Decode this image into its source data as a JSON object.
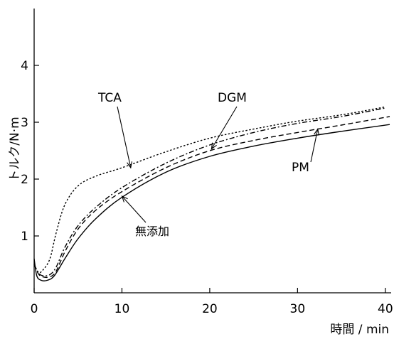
{
  "chart_data": {
    "type": "line",
    "ylabel": "トルク/N·m",
    "xlabel": "時間 / min",
    "xlim": [
      0,
      40.5
    ],
    "ylim": [
      0,
      5
    ],
    "x_ticks": [
      0,
      10,
      20,
      30,
      40
    ],
    "y_ticks": [
      1,
      2,
      3,
      4
    ],
    "grid": false,
    "series": [
      {
        "name": "無添加",
        "style": "solid",
        "points": [
          [
            0,
            0.6
          ],
          [
            0.3,
            0.3
          ],
          [
            0.8,
            0.22
          ],
          [
            1.5,
            0.22
          ],
          [
            2.3,
            0.3
          ],
          [
            3.5,
            0.6
          ],
          [
            5,
            0.95
          ],
          [
            7,
            1.3
          ],
          [
            10,
            1.68
          ],
          [
            15,
            2.12
          ],
          [
            20,
            2.4
          ],
          [
            25,
            2.58
          ],
          [
            30,
            2.72
          ],
          [
            35,
            2.84
          ],
          [
            40.5,
            2.96
          ]
        ]
      },
      {
        "name": "PM",
        "style": "dashed",
        "points": [
          [
            0,
            0.5
          ],
          [
            0.5,
            0.33
          ],
          [
            1,
            0.28
          ],
          [
            1.8,
            0.28
          ],
          [
            2.5,
            0.38
          ],
          [
            3.5,
            0.72
          ],
          [
            5,
            1.12
          ],
          [
            7,
            1.45
          ],
          [
            10,
            1.78
          ],
          [
            15,
            2.2
          ],
          [
            20,
            2.5
          ],
          [
            25,
            2.68
          ],
          [
            30,
            2.82
          ],
          [
            35,
            2.95
          ],
          [
            40.5,
            3.1
          ]
        ]
      },
      {
        "name": "DGM",
        "style": "dashdot",
        "points": [
          [
            0,
            0.5
          ],
          [
            0.5,
            0.35
          ],
          [
            1,
            0.3
          ],
          [
            1.8,
            0.32
          ],
          [
            2.5,
            0.45
          ],
          [
            3.5,
            0.8
          ],
          [
            5,
            1.18
          ],
          [
            7,
            1.5
          ],
          [
            10,
            1.85
          ],
          [
            15,
            2.28
          ],
          [
            20,
            2.6
          ],
          [
            25,
            2.82
          ],
          [
            30,
            2.98
          ],
          [
            35,
            3.1
          ],
          [
            40,
            3.25
          ]
        ]
      },
      {
        "name": "TCA",
        "style": "dotted",
        "points": [
          [
            0,
            0.5
          ],
          [
            0.5,
            0.36
          ],
          [
            1,
            0.4
          ],
          [
            1.8,
            0.6
          ],
          [
            2.5,
            1.05
          ],
          [
            3.5,
            1.55
          ],
          [
            5,
            1.88
          ],
          [
            7,
            2.05
          ],
          [
            10,
            2.2
          ],
          [
            15,
            2.48
          ],
          [
            20,
            2.72
          ],
          [
            25,
            2.88
          ],
          [
            30,
            3.02
          ],
          [
            35,
            3.13
          ],
          [
            40,
            3.27
          ]
        ]
      }
    ],
    "annotations": [
      {
        "text": "TCA",
        "arrow_to": [
          11,
          2.2
        ]
      },
      {
        "text": "DGM",
        "arrow_to": [
          20.2,
          2.53
        ]
      },
      {
        "text": "PM",
        "arrow_to": [
          32.3,
          2.88
        ]
      },
      {
        "text": "無添加",
        "arrow_to": [
          10,
          1.7
        ]
      }
    ]
  }
}
